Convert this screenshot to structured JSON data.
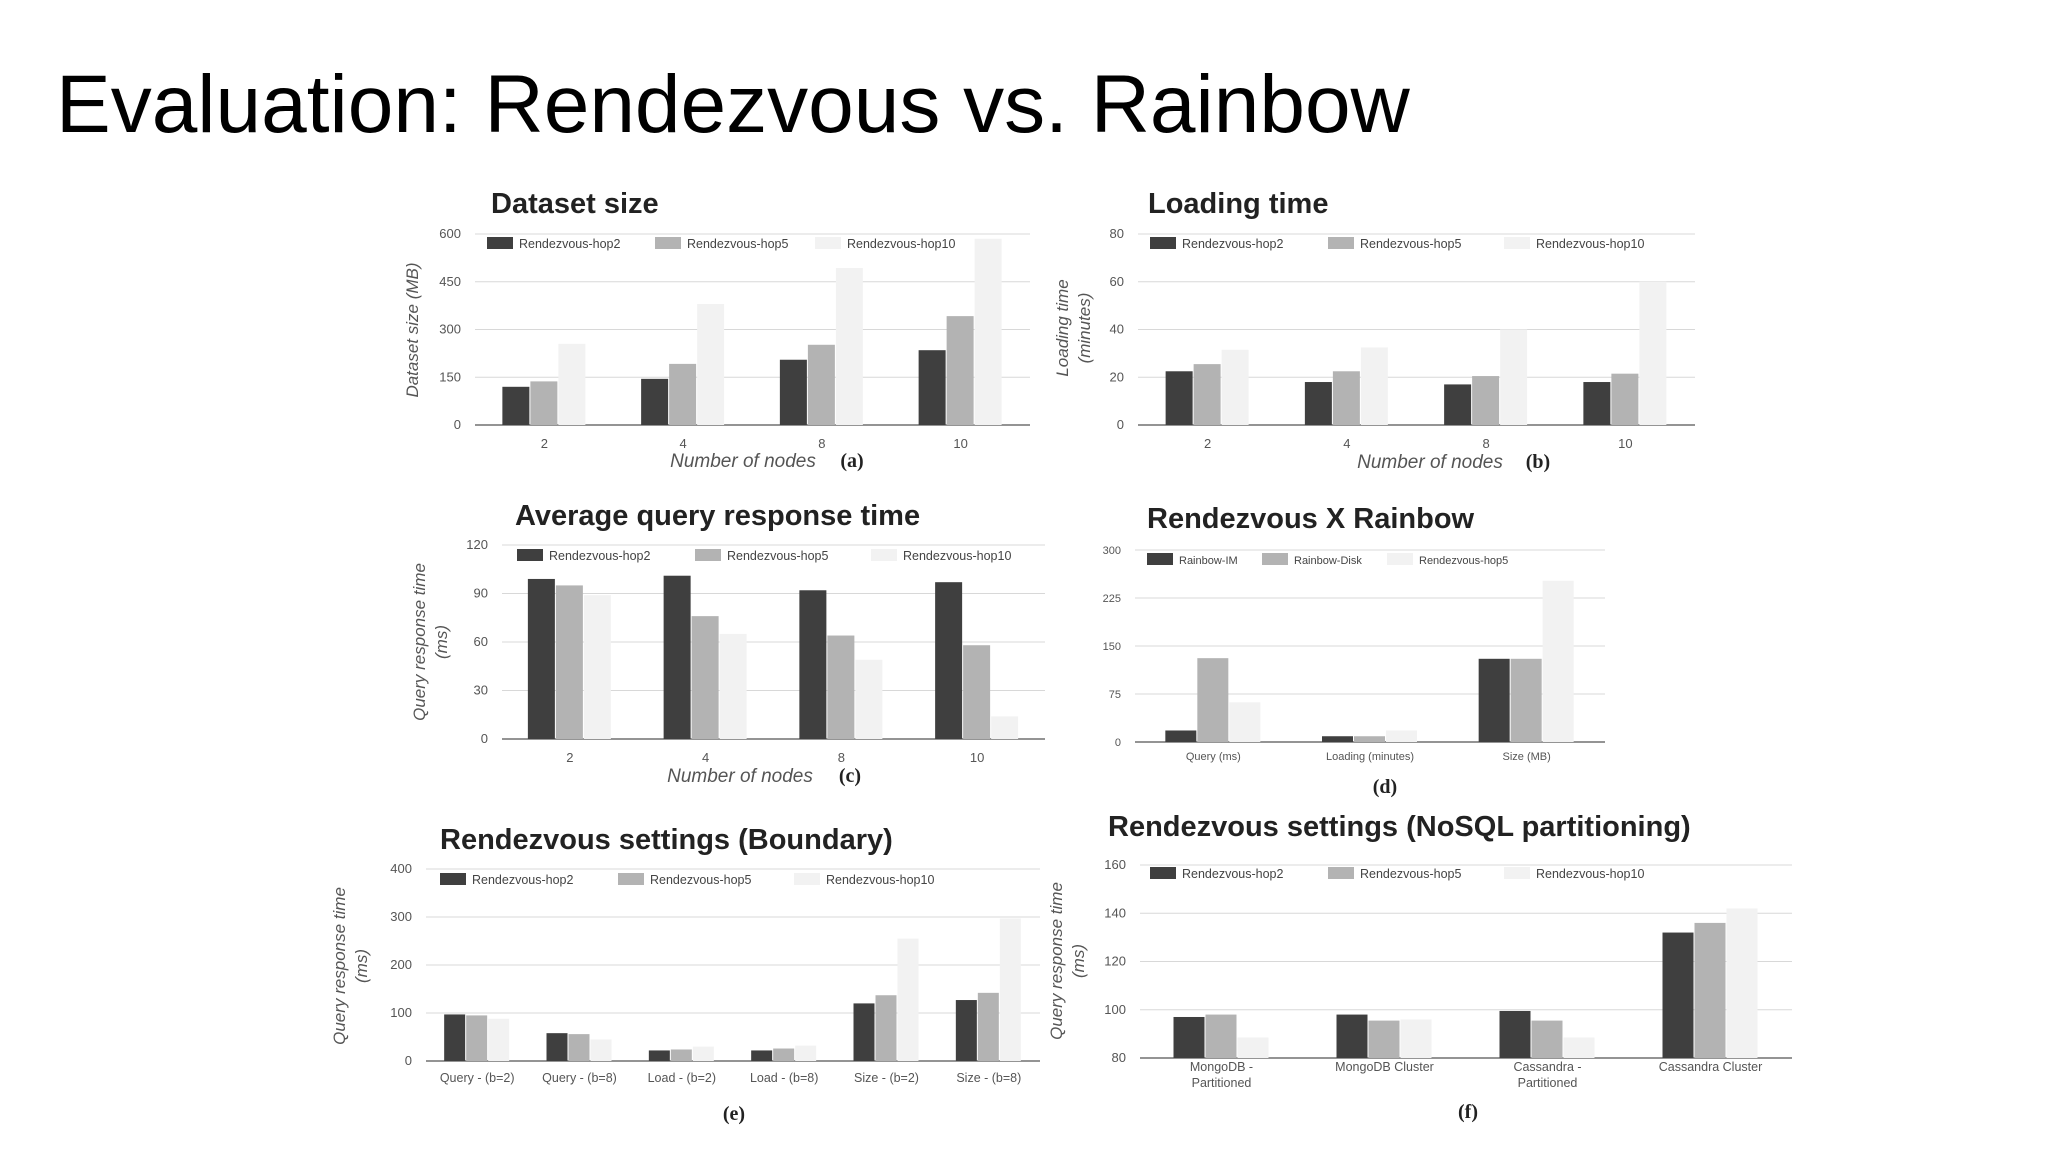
{
  "slide": {
    "title": "Evaluation: Rendezvous vs. Rainbow"
  },
  "colors": {
    "dark": "#3f3f3f",
    "mid": "#b3b3b3",
    "light": "#f2f2f2"
  },
  "chart_data": [
    {
      "id": "a",
      "type": "bar",
      "title": "Dataset size",
      "ylabel": "Dataset size (MB)",
      "xlabel": "Number of nodes",
      "sublabel": "(a)",
      "categories": [
        "2",
        "4",
        "8",
        "10"
      ],
      "yticks": [
        0,
        150,
        300,
        450,
        600
      ],
      "ylim": [
        0,
        600
      ],
      "series": [
        {
          "name": "Rendezvous-hop2",
          "values": [
            120,
            145,
            205,
            235
          ]
        },
        {
          "name": "Rendezvous-hop5",
          "values": [
            137,
            192,
            252,
            342
          ]
        },
        {
          "name": "Rendezvous-hop10",
          "values": [
            255,
            380,
            493,
            585
          ]
        }
      ]
    },
    {
      "id": "b",
      "type": "bar",
      "title": "Loading time",
      "ylabel": "Loading time (minutes)",
      "xlabel": "Number of nodes",
      "sublabel": "(b)",
      "categories": [
        "2",
        "4",
        "8",
        "10"
      ],
      "yticks": [
        0,
        20,
        40,
        60,
        80
      ],
      "ylim": [
        0,
        80
      ],
      "series": [
        {
          "name": "Rendezvous-hop2",
          "values": [
            22.5,
            18,
            17,
            18
          ]
        },
        {
          "name": "Rendezvous-hop5",
          "values": [
            25.5,
            22.5,
            20.5,
            21.5
          ]
        },
        {
          "name": "Rendezvous-hop10",
          "values": [
            31.5,
            32.5,
            40,
            60
          ]
        }
      ]
    },
    {
      "id": "c",
      "type": "bar",
      "title": "Average query response time",
      "ylabel": "Query response time (ms)",
      "xlabel": "Number of nodes",
      "sublabel": "(c)",
      "categories": [
        "2",
        "4",
        "8",
        "10"
      ],
      "yticks": [
        0,
        30,
        60,
        90,
        120
      ],
      "ylim": [
        0,
        120
      ],
      "series": [
        {
          "name": "Rendezvous-hop2",
          "values": [
            99,
            101,
            92,
            97
          ]
        },
        {
          "name": "Rendezvous-hop5",
          "values": [
            95,
            76,
            64,
            58
          ]
        },
        {
          "name": "Rendezvous-hop10",
          "values": [
            89,
            65,
            49,
            14
          ]
        }
      ]
    },
    {
      "id": "d",
      "type": "bar",
      "title": "Rendezvous X Rainbow",
      "ylabel": "",
      "xlabel": "",
      "sublabel": "(d)",
      "categories": [
        "Query (ms)",
        "Loading (minutes)",
        "Size (MB)"
      ],
      "yticks": [
        0,
        75,
        150,
        225,
        300
      ],
      "ylim": [
        0,
        300
      ],
      "series": [
        {
          "name": "Rainbow-IM",
          "values": [
            18,
            9,
            130
          ]
        },
        {
          "name": "Rainbow-Disk",
          "values": [
            131,
            9,
            130
          ]
        },
        {
          "name": "Rendezvous-hop5",
          "values": [
            62,
            18,
            252
          ]
        }
      ]
    },
    {
      "id": "e",
      "type": "bar",
      "title": "Rendezvous settings (Boundary)",
      "ylabel": "Query response time (ms)",
      "xlabel": "",
      "sublabel": "(e)",
      "categories": [
        "Query - (b=2)",
        "Query - (b=8)",
        "Load - (b=2)",
        "Load - (b=8)",
        "Size - (b=2)",
        "Size - (b=8)"
      ],
      "yticks": [
        0,
        100,
        200,
        300,
        400
      ],
      "ylim": [
        0,
        400
      ],
      "series": [
        {
          "name": "Rendezvous-hop2",
          "values": [
            97,
            58,
            22,
            22,
            120,
            127
          ]
        },
        {
          "name": "Rendezvous-hop5",
          "values": [
            95,
            56,
            24,
            26,
            137,
            142
          ]
        },
        {
          "name": "Rendezvous-hop10",
          "values": [
            88,
            45,
            30,
            32,
            255,
            297
          ]
        }
      ]
    },
    {
      "id": "f",
      "type": "bar",
      "title": "Rendezvous settings (NoSQL partitioning)",
      "ylabel": "Query response time (ms)",
      "xlabel": "",
      "sublabel": "(f)",
      "categories": [
        "MongoDB - Partitioned",
        "MongoDB Cluster",
        "Cassandra - Partitioned",
        "Cassandra Cluster"
      ],
      "yticks": [
        80,
        100,
        120,
        140,
        160
      ],
      "ylim": [
        80,
        160
      ],
      "series": [
        {
          "name": "Rendezvous-hop2",
          "values": [
            97,
            98,
            99.5,
            132
          ]
        },
        {
          "name": "Rendezvous-hop5",
          "values": [
            98,
            95.5,
            95.5,
            136
          ]
        },
        {
          "name": "Rendezvous-hop10",
          "values": [
            88.5,
            96,
            88.5,
            142
          ]
        }
      ]
    }
  ]
}
